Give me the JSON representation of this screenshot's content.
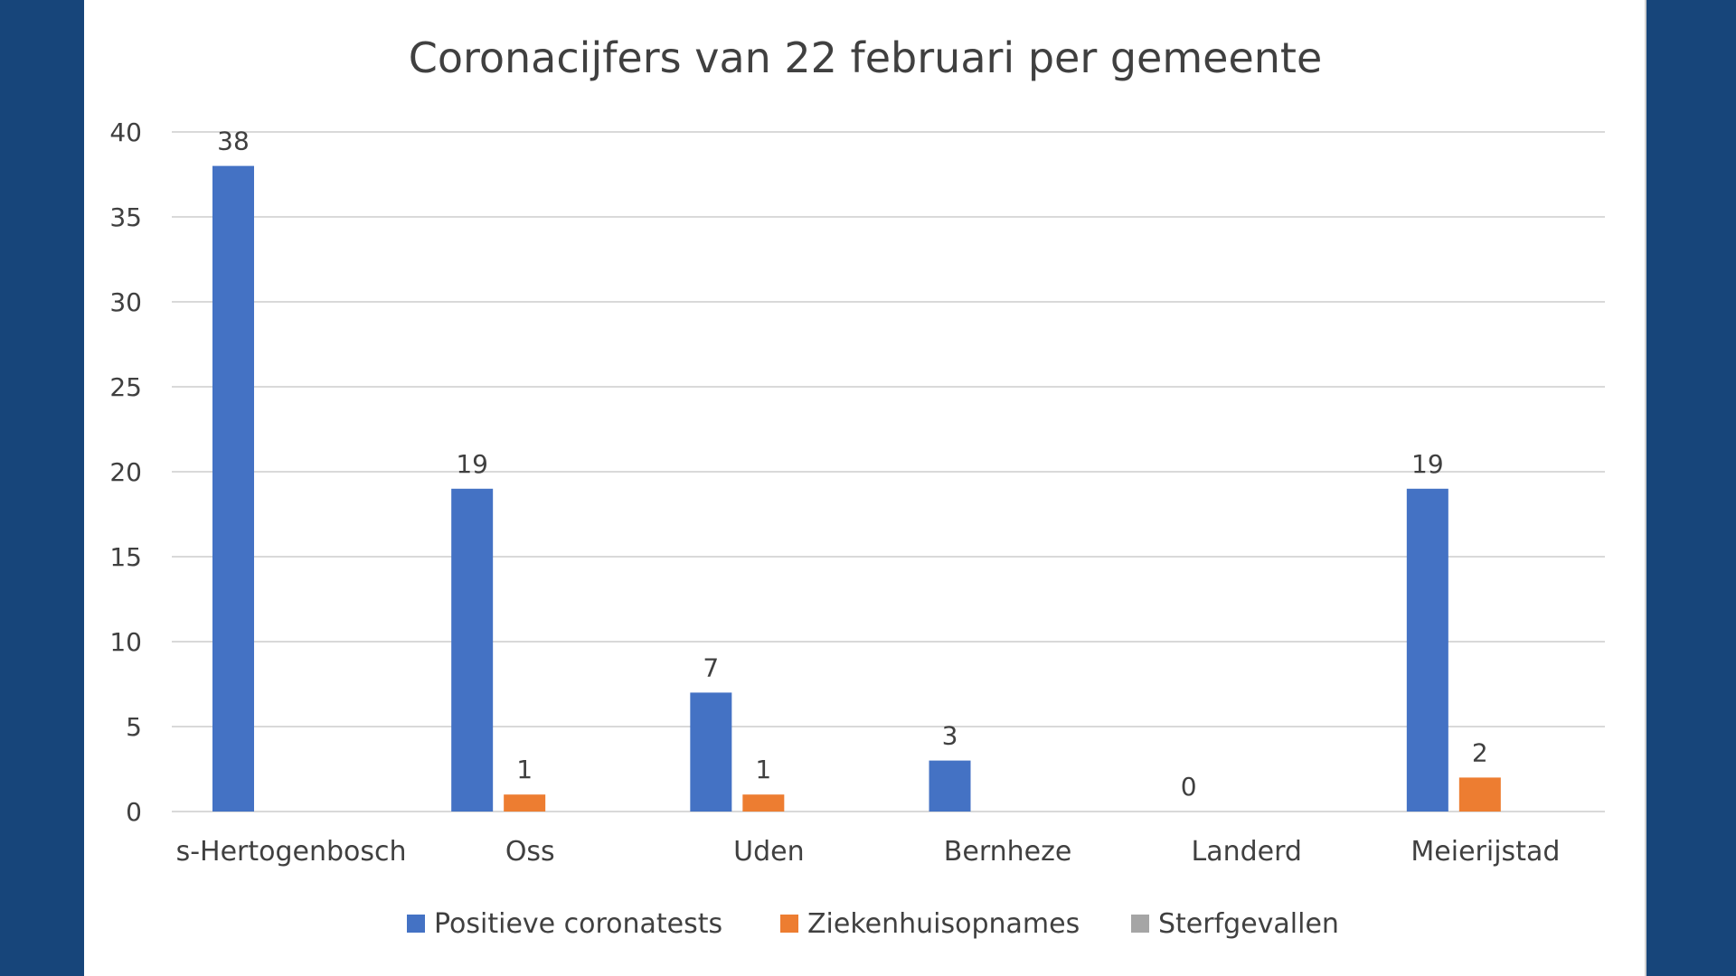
{
  "chart_data": {
    "type": "bar",
    "title": "Coronacijfers van 22 februari per gemeente",
    "categories": [
      "s-Hertogenbosch",
      "Oss",
      "Uden",
      "Bernheze",
      "Landerd",
      "Meierijstad"
    ],
    "series": [
      {
        "name": "Positieve coronatests",
        "color": "#4472c4",
        "values": [
          38,
          19,
          7,
          3,
          0,
          19
        ],
        "labels": [
          "38",
          "19",
          "7",
          "3",
          "0",
          "19"
        ]
      },
      {
        "name": "Ziekenhuisopnames",
        "color": "#ed7d31",
        "values": [
          0,
          1,
          1,
          0,
          0,
          2
        ],
        "labels": [
          "",
          "1",
          "1",
          "",
          "",
          "2"
        ]
      },
      {
        "name": "Sterfgevallen",
        "color": "#a5a5a5",
        "values": [
          0,
          0,
          0,
          0,
          0,
          0
        ],
        "labels": [
          "",
          "",
          "",
          "",
          "",
          ""
        ]
      }
    ],
    "yticks": [
      "0",
      "5",
      "10",
      "15",
      "20",
      "25",
      "30",
      "35",
      "40"
    ],
    "ylim": [
      0,
      40
    ],
    "xlabel": "",
    "ylabel": "",
    "grid": true,
    "legend_position": "bottom"
  }
}
